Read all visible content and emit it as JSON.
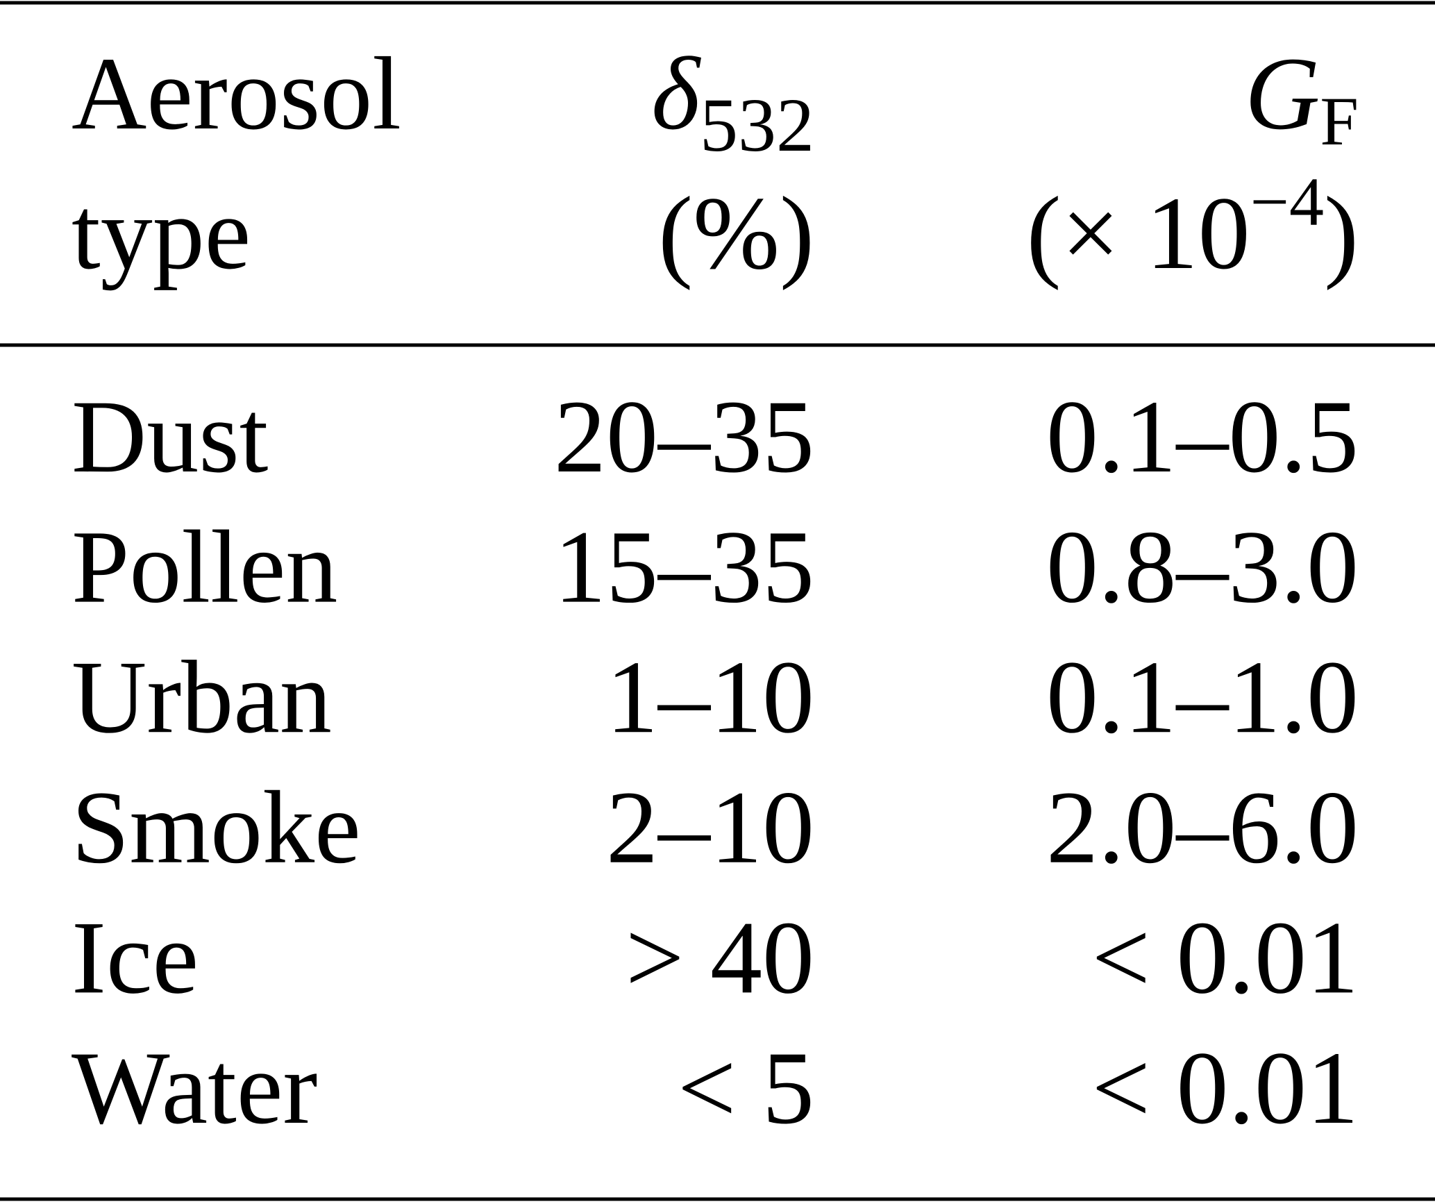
{
  "table": {
    "header": [
      {
        "lines": [
          "Aerosol",
          "type"
        ]
      },
      {
        "symbol": "δ",
        "subscript": "532",
        "unit": "(%)"
      },
      {
        "symbol": "G",
        "subscript": "F",
        "unit_prefix": "(× 10",
        "unit_exponent": "−4",
        "unit_suffix": ")"
      }
    ],
    "rows": [
      [
        "Dust",
        "20–35",
        "0.1–0.5"
      ],
      [
        "Pollen",
        "15–35",
        "0.8–3.0"
      ],
      [
        "Urban",
        "1–10",
        "0.1–1.0"
      ],
      [
        "Smoke",
        "2–10",
        "2.0–6.0"
      ],
      [
        "Ice",
        "> 40",
        "< 0.01"
      ],
      [
        "Water",
        "< 5",
        "< 0.01"
      ]
    ]
  }
}
